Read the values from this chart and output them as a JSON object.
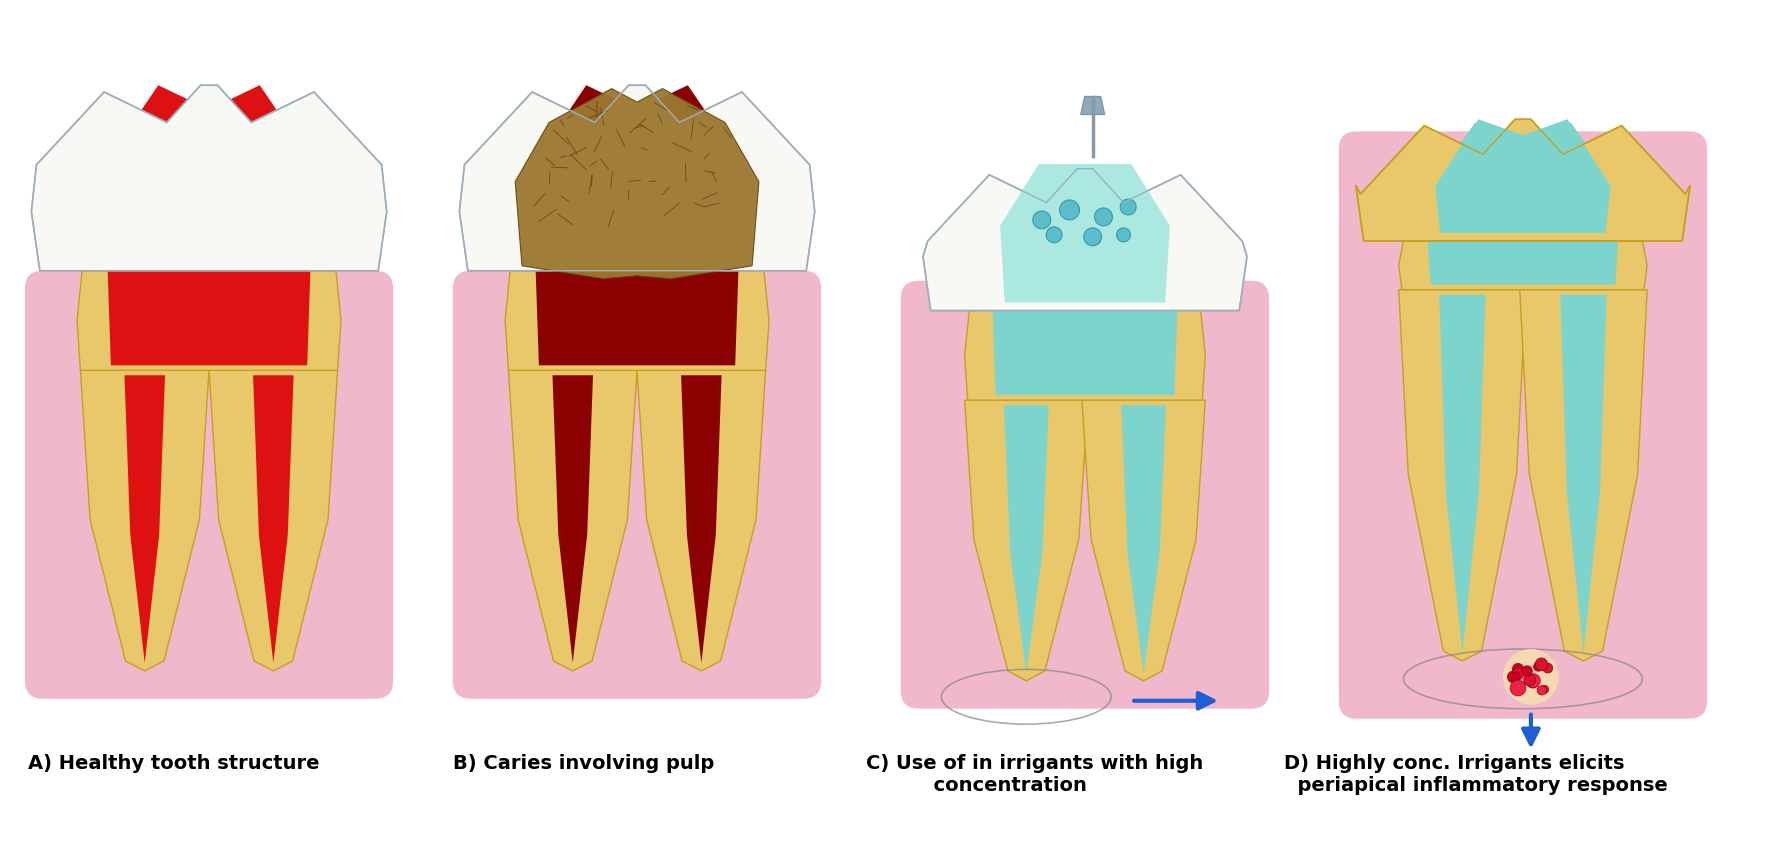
{
  "background_color": "#ffffff",
  "panel_labels": [
    "A) Healthy tooth structure",
    "B) Caries involving pulp",
    "C) Use of in irrigants with high\n          concentration",
    "D) Highly conc. Irrigants elicits\n  periapical inflammatory response"
  ],
  "gum_color": "#f0b0c5",
  "enamel_color": "#f8f8f5",
  "dentin_color": "#e8c86a",
  "pulp_healthy_color": "#dd1111",
  "pulp_caries_color": "#8b0000",
  "caries_fill_color": "#9b7830",
  "teal_color": "#7dd4cc",
  "teal_light_color": "#aae8e0",
  "arrow_color": "#1e5fd4",
  "syringe_color": "#b8d0e0",
  "label_fontsize": 14
}
